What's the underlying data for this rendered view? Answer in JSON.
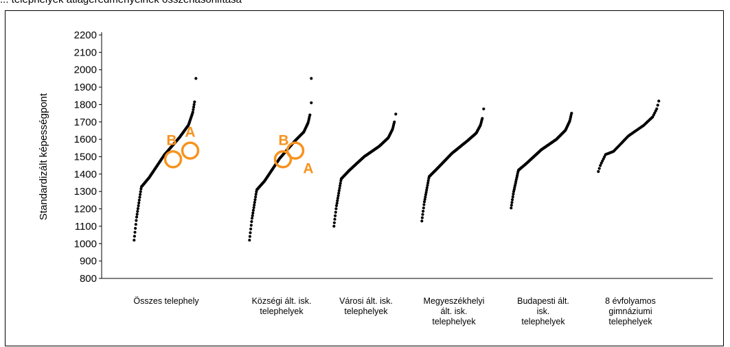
{
  "caption": "... telephelyek átlageredményeinek összehasonlítása",
  "chart_data": {
    "type": "scatter",
    "ylabel": "Standardizált képességpont",
    "ylim": [
      800,
      2200
    ],
    "yticks": [
      800,
      900,
      1000,
      1100,
      1200,
      1300,
      1400,
      1500,
      1600,
      1700,
      1800,
      1900,
      2000,
      2100,
      2200
    ],
    "grid": false,
    "categories": [
      "Összes telephely",
      "Községi ált. isk. telephelyek",
      "Városi ált. isk. telephelyek",
      "Megyeszékhelyi ált. isk. telephelyek",
      "Budapesti ált. isk. telephelyek",
      "8 évfolyamos gimnáziumi telephelyek"
    ],
    "series": [
      {
        "category": "Összes telephely",
        "min": 1020,
        "q_low": 1380,
        "median": 1510,
        "q_high": 1610,
        "max": 1815,
        "outliers": [
          1950
        ]
      },
      {
        "category": "Községi ált. isk. telephelyek",
        "min": 1020,
        "q_low": 1360,
        "median": 1490,
        "q_high": 1590,
        "max": 1740,
        "outliers": [
          1950,
          1810
        ]
      },
      {
        "category": "Városi ált. isk. telephelyek",
        "min": 1100,
        "q_low": 1420,
        "median": 1500,
        "q_high": 1560,
        "max": 1700,
        "outliers": [
          1745
        ]
      },
      {
        "category": "Megyeszékhelyi ált. isk. telephelyek",
        "min": 1130,
        "q_low": 1430,
        "median": 1520,
        "q_high": 1590,
        "max": 1720,
        "outliers": [
          1775
        ]
      },
      {
        "category": "Budapesti ált. isk. telephelyek",
        "min": 1205,
        "q_low": 1460,
        "median": 1540,
        "q_high": 1600,
        "max": 1750,
        "outliers": []
      },
      {
        "category": "8 évfolyamos gimnáziumi telephelyek",
        "min": 1415,
        "q_low": 1530,
        "median": 1620,
        "q_high": 1680,
        "max": 1820,
        "outliers": []
      }
    ],
    "annotations": [
      {
        "category": "Összes telephely",
        "label": "A",
        "y": 1535
      },
      {
        "category": "Összes telephely",
        "label": "B",
        "y": 1485
      },
      {
        "category": "Községi ált. isk. telephelyek",
        "label": "A",
        "y": 1535
      },
      {
        "category": "Községi ált. isk. telephelyek",
        "label": "B",
        "y": 1485
      }
    ],
    "annotation_color": "#F7931E"
  }
}
